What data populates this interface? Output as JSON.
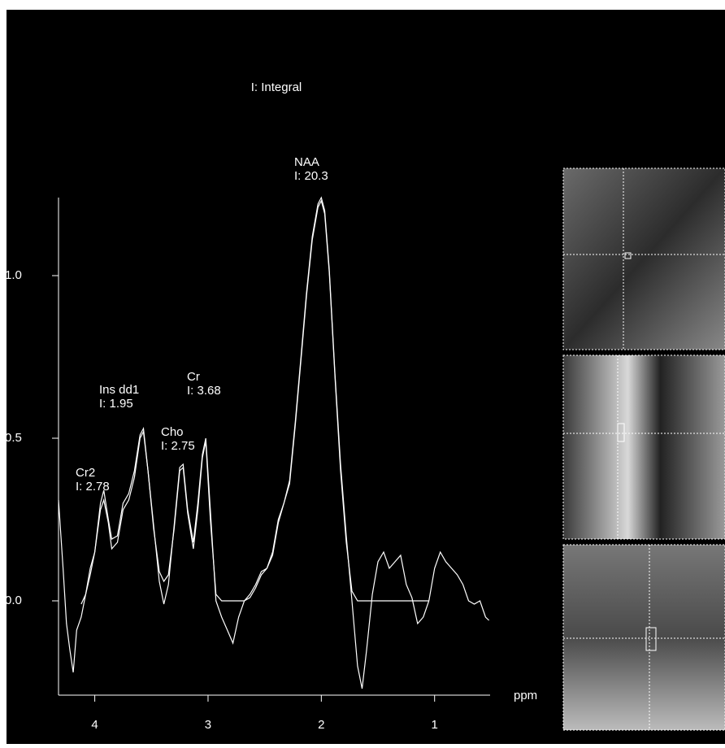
{
  "chart_data": {
    "type": "line",
    "subtitle": "I: Integral",
    "xlabel": "ppm",
    "xlim": [
      4.32,
      0.51
    ],
    "ylim": [
      -0.29,
      1.24
    ],
    "xticks": [
      4,
      3,
      2,
      1
    ],
    "yticks": [
      {
        "value": 0,
        "label": "0.0"
      },
      0.5,
      {
        "value": 1,
        "label": "1.0"
      }
    ],
    "x": [
      4.32,
      4.28,
      4.25,
      4.22,
      4.19,
      4.16,
      4.12,
      4.08,
      4.04,
      4.0,
      3.95,
      3.92,
      3.88,
      3.85,
      3.8,
      3.75,
      3.7,
      3.65,
      3.6,
      3.57,
      3.53,
      3.48,
      3.43,
      3.39,
      3.35,
      3.3,
      3.25,
      3.22,
      3.18,
      3.13,
      3.09,
      3.05,
      3.02,
      2.98,
      2.93,
      2.88,
      2.83,
      2.78,
      2.73,
      2.68,
      2.63,
      2.58,
      2.53,
      2.48,
      2.43,
      2.38,
      2.33,
      2.28,
      2.23,
      2.18,
      2.13,
      2.08,
      2.03,
      2.0,
      1.97,
      1.93,
      1.88,
      1.83,
      1.78,
      1.73,
      1.68,
      1.64,
      1.6,
      1.55,
      1.5,
      1.45,
      1.4,
      1.35,
      1.3,
      1.25,
      1.2,
      1.15,
      1.1,
      1.05,
      1.0,
      0.95,
      0.9,
      0.85,
      0.8,
      0.75,
      0.7,
      0.65,
      0.6,
      0.55,
      0.52
    ],
    "series": [
      {
        "color": "#ffffff",
        "values": [
          0.31,
          0.1,
          -0.07,
          -0.15,
          -0.22,
          -0.09,
          -0.05,
          0.02,
          0.1,
          0.15,
          0.3,
          0.34,
          0.25,
          0.19,
          0.2,
          0.3,
          0.33,
          0.4,
          0.51,
          0.53,
          0.4,
          0.23,
          0.06,
          -0.01,
          0.05,
          0.23,
          0.41,
          0.42,
          0.28,
          0.18,
          0.3,
          0.45,
          0.5,
          0.28,
          0.0,
          -0.05,
          -0.09,
          -0.13,
          -0.05,
          0.0,
          0.02,
          0.05,
          0.09,
          0.1,
          0.15,
          0.25,
          0.3,
          0.37,
          0.55,
          0.75,
          0.95,
          1.12,
          1.22,
          1.24,
          1.2,
          1.02,
          0.7,
          0.42,
          0.2,
          0.0,
          -0.2,
          -0.27,
          -0.15,
          0.02,
          0.12,
          0.15,
          0.1,
          0.12,
          0.14,
          0.05,
          0.01,
          -0.07,
          -0.05,
          0.0,
          0.1,
          0.15,
          0.12,
          0.1,
          0.08,
          0.05,
          0.0,
          -0.01,
          0.0,
          -0.05,
          -0.06
        ]
      },
      {
        "color": "#ffffff",
        "values": [
          null,
          null,
          null,
          null,
          null,
          null,
          -0.01,
          0.02,
          0.08,
          0.15,
          0.28,
          0.31,
          0.24,
          0.16,
          0.18,
          0.28,
          0.31,
          0.38,
          0.5,
          0.52,
          0.4,
          0.22,
          0.09,
          0.06,
          0.08,
          0.22,
          0.4,
          0.41,
          0.27,
          0.16,
          0.28,
          0.44,
          0.49,
          0.25,
          0.02,
          0,
          0,
          0,
          0,
          0,
          0.01,
          0.04,
          0.08,
          0.1,
          0.14,
          0.24,
          0.3,
          0.36,
          0.54,
          0.74,
          0.94,
          1.11,
          1.21,
          1.23,
          1.19,
          1.01,
          0.69,
          0.4,
          0.18,
          0.03,
          0,
          0,
          0,
          0,
          0,
          0,
          0,
          0,
          0,
          0,
          0,
          0,
          0,
          0,
          null,
          null,
          null,
          null,
          null,
          null,
          null,
          null,
          null,
          null,
          null
        ]
      }
    ],
    "annotations": [
      {
        "name": "NAA",
        "label": "I: 20.3"
      },
      {
        "name": "Ins dd1",
        "label": "I: 1.95"
      },
      {
        "name": "Cr",
        "label": "I: 3.68"
      },
      {
        "name": "Cho",
        "label": "I: 2.75"
      },
      {
        "name": "Cr2",
        "label": "I: 2.78"
      }
    ]
  }
}
